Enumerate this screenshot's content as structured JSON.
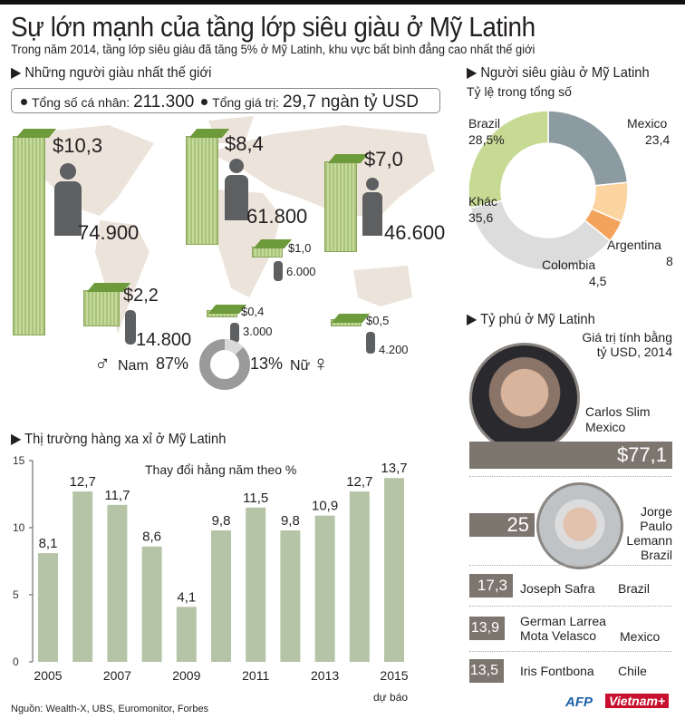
{
  "title": "Sự lớn mạnh của tầng lớp siêu giàu ở Mỹ Latinh",
  "subtitle": "Trong năm 2014, tầng lớp siêu giàu đã tăng 5% ở Mỹ Latinh, khu vực bất bình đẳng cao nhất thế giới",
  "world": {
    "heading": "Những người giàu nhất thế giới",
    "total_individuals_label": "Tổng số cá nhân:",
    "total_individuals": "211.300",
    "total_value_label": "Tổng giá trị:",
    "total_value": "29,7 ngàn tỷ USD",
    "regions": [
      {
        "wealth": "$10,3",
        "people": "74.900"
      },
      {
        "wealth": "$8,4",
        "people": "61.800"
      },
      {
        "wealth": "$7,0",
        "people": "46.600"
      },
      {
        "wealth": "$1,0",
        "people": "6.000"
      },
      {
        "wealth": "$2,2",
        "people": "14.800"
      },
      {
        "wealth": "$0,4",
        "people": "3.000"
      },
      {
        "wealth": "$0,5",
        "people": "4.200"
      }
    ],
    "gender": {
      "male_label": "Nam",
      "male_pct": "87%",
      "female_pct": "13%",
      "female_label": "Nữ",
      "male_share": 87
    }
  },
  "luxury": {
    "heading": "Thị trường hàng xa xỉ ở Mỹ Latinh",
    "forecast_label": "dự báo"
  },
  "superrich": {
    "heading": "Người siêu giàu ở Mỹ Latinh",
    "subheading": "Tỷ lệ trong tổng số"
  },
  "billionaires": {
    "heading": "Tỷ phú ở Mỹ Latinh",
    "note": "Giá trị tính bằng tỷ USD, 2014",
    "list": [
      {
        "value": "$77,1",
        "name": "Carlos Slim",
        "country": "Mexico",
        "amount": 77.1
      },
      {
        "value": "25",
        "name": "Jorge Paulo Lemann",
        "country": "Brazil",
        "amount": 25
      },
      {
        "value": "17,3",
        "name": "Joseph Safra",
        "country": "Brazil",
        "amount": 17.3
      },
      {
        "value": "13,9",
        "name": "German Larrea Mota Velasco",
        "country": "Mexico",
        "amount": 13.9
      },
      {
        "value": "13,5",
        "name": "Iris Fontbona",
        "country": "Chile",
        "amount": 13.5
      }
    ]
  },
  "source": "Nguồn: Wealth-X, UBS, Euromonitor, Forbes",
  "logos": {
    "afp": "AFP",
    "vietnam": "Vietnam+"
  },
  "chart_data": [
    {
      "type": "bar",
      "title": "Thay đổi hằng năm theo %",
      "xlabel": "",
      "ylabel": "",
      "categories": [
        "2005",
        "2006",
        "2007",
        "2008",
        "2009",
        "2010",
        "2011",
        "2012",
        "2013",
        "2014",
        "2015"
      ],
      "values": [
        8.1,
        12.7,
        11.7,
        8.6,
        4.1,
        9.8,
        11.5,
        9.8,
        10.9,
        12.7,
        13.7
      ],
      "data_labels": [
        "8,1",
        "12,7",
        "11,7",
        "8,6",
        "4,1",
        "9,8",
        "11,5",
        "9,8",
        "10,9",
        "12,7",
        "13,7"
      ],
      "xtick_labels": [
        "2005",
        "2007",
        "2009",
        "2011",
        "2013",
        "2015"
      ],
      "yticks": [
        0,
        5,
        10,
        15
      ],
      "ylim": [
        0,
        15
      ],
      "color": "#b5c4a7"
    },
    {
      "type": "pie",
      "title": "Tỷ lệ trong tổng số",
      "slices": [
        {
          "name": "Mexico",
          "value": 23.4,
          "label": "23,4",
          "color": "#8c9aa1"
        },
        {
          "name": "Argentina",
          "value": 8,
          "label": "8",
          "color": "#fcd49f"
        },
        {
          "name": "Colombia",
          "value": 4.5,
          "label": "4,5",
          "color": "#f4a35c"
        },
        {
          "name": "Khác",
          "value": 35.6,
          "label": "35,6",
          "color": "#dcdcdc"
        },
        {
          "name": "Brazil",
          "value": 28.5,
          "label": "28,5%",
          "color": "#c6da93"
        }
      ]
    }
  ]
}
